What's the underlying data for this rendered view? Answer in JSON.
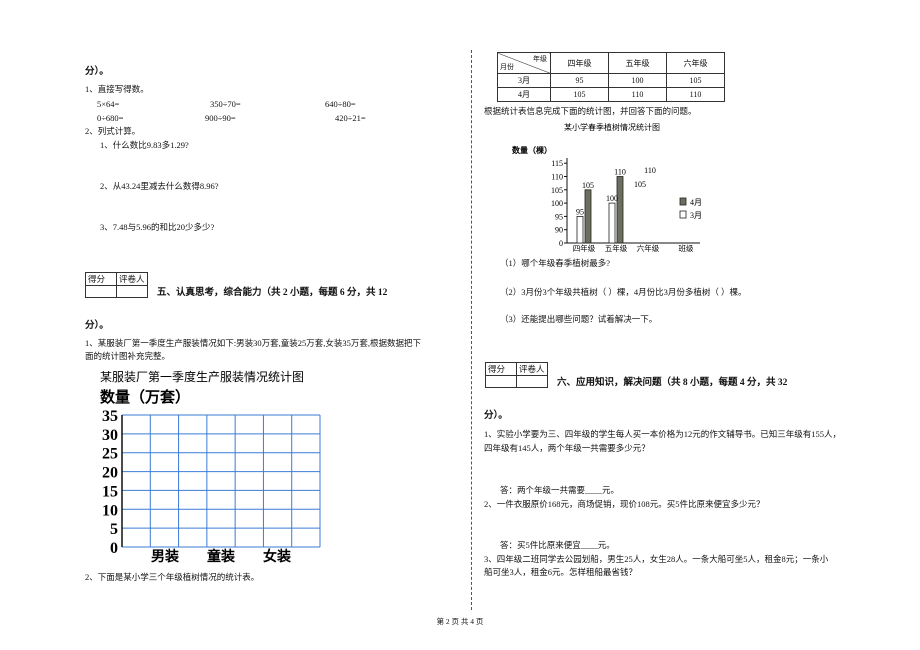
{
  "left": {
    "intro": "分）。",
    "q1": {
      "title": "1、直接写得数。",
      "items": [
        "5×64=",
        "350÷70=",
        "640÷80=",
        "0÷680=",
        "900÷90=",
        "420÷21="
      ]
    },
    "q2": {
      "title": "2、列式计算。",
      "items": [
        "1、什么数比9.83多1.29?",
        "2、从43.24里减去什么数得8.96?",
        "3、7.48与5.96的和比20少多少?"
      ]
    },
    "section5": {
      "score": "得分",
      "grader": "评卷人",
      "title": "五、认真思考，综合能力（共 2 小题，每题 6 分，共 12",
      "title_cont": "分）。"
    },
    "p1": [
      "1、某服装厂第一季度生产服装情况如下:男装30万套,童装25万套,女装35万套,根据数据把下",
      "面的统计图补充完整。"
    ],
    "chart1": {
      "title": "某服装厂第一季度生产服装情况统计图",
      "y_label": "数量（万套）",
      "ylim": [
        0,
        35
      ],
      "yticks": [
        0,
        5,
        10,
        15,
        20,
        25,
        30,
        35
      ],
      "categories": [
        "男装",
        "童装",
        "女装"
      ]
    },
    "p2": "2、下面是某小学三个年级植树情况的统计表。"
  },
  "right": {
    "table": {
      "corner_top": "年级",
      "corner_bottom": "月份",
      "columns": [
        "四年级",
        "五年级",
        "六年级"
      ],
      "rows": [
        [
          "3月",
          "95",
          "100",
          "105"
        ],
        [
          "4月",
          "105",
          "110",
          "110"
        ]
      ]
    },
    "instruction": "根据统计表信息完成下面的统计图，并回答下面的问题。",
    "chart2": {
      "title": "某小学春季植树情况统计图",
      "y_label": "数量（棵）",
      "yticks": [
        0,
        90,
        95,
        100,
        105,
        110,
        115
      ],
      "categories": [
        "四年级",
        "五年级",
        "六年级"
      ],
      "x_label": "班级",
      "series": [
        {
          "name": "4月",
          "color": "#6e6e60",
          "values": [
            105,
            110,
            null
          ]
        },
        {
          "name": "3月",
          "color": "#ffffff",
          "values": [
            95,
            100,
            null
          ]
        }
      ],
      "pending_labels": [
        "110",
        "105"
      ]
    },
    "questions": [
      "（1）哪个年级春季植树最多?",
      "（2）3月份3个年级共植树（     ）棵，4月份比3月份多植树（     ）棵。",
      "（3）还能提出哪些问题？试着解决一下。"
    ],
    "section6": {
      "score": "得分",
      "grader": "评卷人",
      "title": "六、应用知识，解决问题（共 8 小题，每题 4 分，共 32",
      "title_cont": "分）。"
    },
    "problems": [
      "1、实验小学要为三、四年级的学生每人买一本价格为12元的作文辅导书。已知三年级有155人，",
      "四年级有145人，两个年级一共需要多少元？",
      "答：两个年级一共需要____元。",
      "2、一件衣服原价168元，商场促销，现价108元。买5件比原来便宜多少元？",
      "答：买5件比原来便宜____元。",
      "3、四年级二班同学去公园划船，男生25人，女生28人。一条大船可坐5人，租金8元；一条小",
      "船可坐3人，租金6元。怎样租船最省钱？"
    ]
  },
  "footer": "第 2 页 共 4 页"
}
